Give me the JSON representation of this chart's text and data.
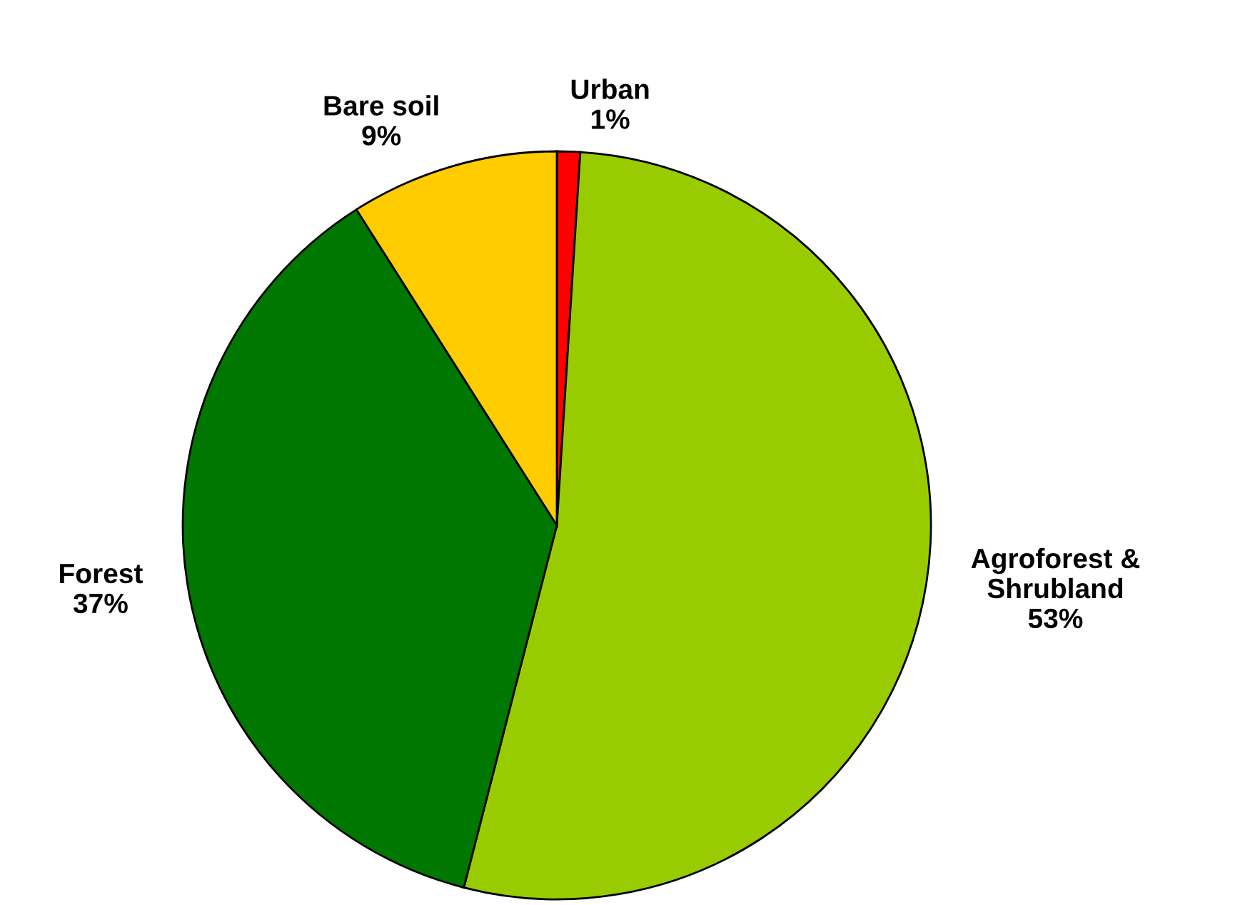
{
  "chart_data": {
    "type": "pie",
    "categories": [
      "Urban",
      "Agroforest &\nShrubland",
      "Forest",
      "Bare soil"
    ],
    "values": [
      1,
      53,
      37,
      9
    ],
    "value_labels": [
      "1%",
      "53%",
      "37%",
      "9%"
    ],
    "colors": [
      "#ff0000",
      "#99cc00",
      "#007700",
      "#ffcc00"
    ],
    "legend": false
  }
}
